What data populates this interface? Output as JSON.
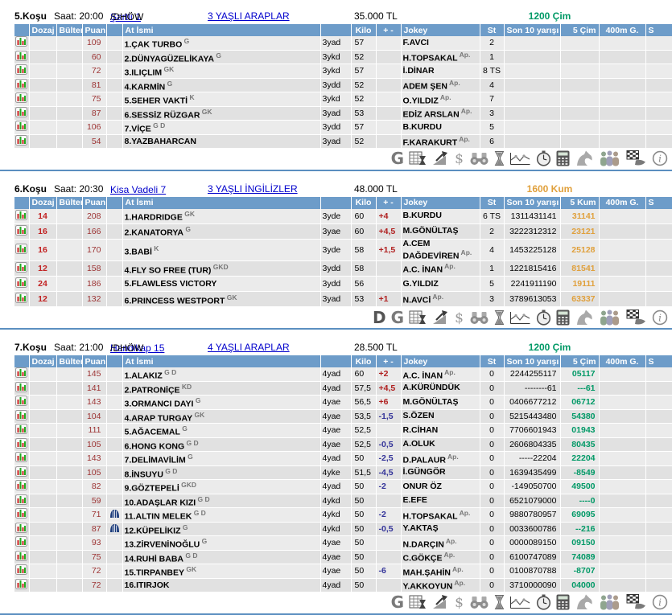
{
  "columns": {
    "dozaj": "Dozaj",
    "bulten": "Bülten",
    "puan": "Puan",
    "name": "At İsmi",
    "kilo": "Kilo",
    "diff": "+ -",
    "jokey": "Jokey",
    "st": "St",
    "son10": "Son 10 yarışı",
    "m400": "400m G.",
    "s_cut": "S"
  },
  "colors": {
    "header_bg": "#6d9cc9",
    "link": "#0000cc",
    "cim_green": "#009966",
    "kum_orange": "#e0a03c",
    "puan_red": "#9c3333",
    "dozaj_red": "#c22222",
    "plus_red": "#b02020",
    "minus_navy": "#333399",
    "divider_blue": "#5b8fc0"
  },
  "toolbar_icons": [
    "entries-table-icon",
    "performance-chart-icon",
    "dollar-icon",
    "binoculars-icon",
    "hourglass-icon",
    "form-graph-icon",
    "stopwatch-icon",
    "calculator-icon",
    "horse-icon",
    "crowd-icon",
    "finish-flag-icon",
    "info-icon"
  ],
  "races": [
    {
      "title": "5.Koşu",
      "time": "Saat: 20:00",
      "condition": "Şartlı 1",
      "condition_suffix": " /DHÖW",
      "category": "3 YAŞLI ARAPLAR",
      "prize": "35.000 TL",
      "distance": "1200 Çim",
      "surface": "cim",
      "surface_header": "5 Çim",
      "letters": [
        "G"
      ],
      "tall": false,
      "horses": [
        {
          "dozaj": "",
          "puan": "109",
          "blinkers": false,
          "name": "1.ÇAK TURBO",
          "sup": "G",
          "age": "3yad",
          "kilo": "57",
          "diff": "",
          "jokey": "F.AVCI",
          "ap": false,
          "st": "2",
          "son10": "",
          "last5": ""
        },
        {
          "dozaj": "",
          "puan": "60",
          "blinkers": false,
          "name": "2.DÜNYAGÜZELİKAYA",
          "sup": "G",
          "age": "3ykd",
          "kilo": "52",
          "diff": "",
          "jokey": "H.TOPSAKAL",
          "ap": true,
          "st": "1",
          "son10": "",
          "last5": ""
        },
        {
          "dozaj": "",
          "puan": "72",
          "blinkers": false,
          "name": "3.ILIÇLIM",
          "sup": "GK",
          "age": "3ykd",
          "kilo": "57",
          "diff": "",
          "jokey": "İ.DİNAR",
          "ap": false,
          "st": "8 TS",
          "son10": "",
          "last5": ""
        },
        {
          "dozaj": "",
          "puan": "81",
          "blinkers": false,
          "name": "4.KARMİN",
          "sup": "G",
          "age": "3ydd",
          "kilo": "52",
          "diff": "",
          "jokey": "ADEM ŞEN",
          "ap": true,
          "st": "4",
          "son10": "",
          "last5": ""
        },
        {
          "dozaj": "",
          "puan": "75",
          "blinkers": false,
          "name": "5.SEHER VAKTİ",
          "sup": "K",
          "age": "3ykd",
          "kilo": "52",
          "diff": "",
          "jokey": "O.YILDIZ",
          "ap": true,
          "st": "7",
          "son10": "",
          "last5": ""
        },
        {
          "dozaj": "",
          "puan": "87",
          "blinkers": false,
          "name": "6.SESSİZ RÜZGAR",
          "sup": "GK",
          "age": "3yad",
          "kilo": "53",
          "diff": "",
          "jokey": "EDİZ ARSLAN",
          "ap": true,
          "st": "3",
          "son10": "",
          "last5": ""
        },
        {
          "dozaj": "",
          "puan": "106",
          "blinkers": false,
          "name": "7.VİÇE",
          "sup": "G D",
          "age": "3ydd",
          "kilo": "57",
          "diff": "",
          "jokey": "B.KURDU",
          "ap": false,
          "st": "5",
          "son10": "",
          "last5": ""
        },
        {
          "dozaj": "",
          "puan": "54",
          "blinkers": false,
          "name": "8.YAZBAHARCAN",
          "sup": "",
          "age": "3yad",
          "kilo": "52",
          "diff": "",
          "jokey": "F.KARAKURT",
          "ap": true,
          "st": "6",
          "son10": "",
          "last5": ""
        }
      ]
    },
    {
      "title": "6.Koşu",
      "time": "Saat: 20:30",
      "condition": "Kisa Vadeli 7",
      "condition_suffix": "",
      "category": "3 YAŞLI İNGİLİZLER",
      "prize": "48.000 TL",
      "distance": "1600 Kum",
      "surface": "kum",
      "surface_header": "5 Kum",
      "letters": [
        "D",
        "G"
      ],
      "tall": true,
      "horses": [
        {
          "dozaj": "14",
          "puan": "208",
          "blinkers": false,
          "name": "1.HARDRIDGE",
          "sup": "GK",
          "age": "3yde",
          "kilo": "60",
          "diff": "+4",
          "jokey": "B.KURDU",
          "ap": false,
          "st": "6 TS",
          "son10": "1311431141",
          "last5": "31141"
        },
        {
          "dozaj": "16",
          "puan": "166",
          "blinkers": false,
          "name": "2.KANATORYA",
          "sup": "G",
          "age": "3yae",
          "kilo": "60",
          "diff": "+4,5",
          "jokey": "M.GÖNÜLTAŞ",
          "ap": false,
          "st": "2",
          "son10": "3222312312",
          "last5": "23121"
        },
        {
          "dozaj": "16",
          "puan": "170",
          "blinkers": false,
          "name": "3.BABİ",
          "sup": "K",
          "age": "3yde",
          "kilo": "58",
          "diff": "+1,5",
          "jokey": "A.CEM DAĞDEVİREN",
          "ap": true,
          "st": "4",
          "son10": "1453225128",
          "last5": "25128"
        },
        {
          "dozaj": "12",
          "puan": "158",
          "blinkers": false,
          "name": "4.FLY SO FREE (TUR)",
          "sup": "GKD",
          "age": "3ydd",
          "kilo": "58",
          "diff": "",
          "jokey": "A.C. İNAN",
          "ap": true,
          "st": "1",
          "son10": "1221815416",
          "last5": "81541"
        },
        {
          "dozaj": "24",
          "puan": "186",
          "blinkers": false,
          "name": "5.FLAWLESS VICTORY",
          "sup": "",
          "age": "3ydd",
          "kilo": "56",
          "diff": "",
          "jokey": "G.YILDIZ",
          "ap": false,
          "st": "5",
          "son10": "2241911190",
          "last5": "19111"
        },
        {
          "dozaj": "12",
          "puan": "132",
          "blinkers": false,
          "name": "6.PRINCESS WESTPORT",
          "sup": "GK",
          "age": "3yad",
          "kilo": "53",
          "diff": "+1",
          "jokey": "N.AVCİ",
          "ap": true,
          "st": "3",
          "son10": "3789613053",
          "last5": "63337"
        }
      ]
    },
    {
      "title": "7.Koşu",
      "time": "Saat: 21:00",
      "condition": "Handikap 15",
      "condition_suffix": " /DHÖW",
      "category": "4 YAŞLI ARAPLAR",
      "prize": "28.500 TL",
      "distance": "1200 Çim",
      "surface": "cim",
      "surface_header": "5 Çim",
      "letters": [
        "G"
      ],
      "tall": false,
      "horses": [
        {
          "dozaj": "",
          "puan": "145",
          "blinkers": false,
          "name": "1.ALAKIZ",
          "sup": "G D",
          "age": "4yad",
          "kilo": "60",
          "diff": "+2",
          "jokey": "A.C. İNAN",
          "ap": true,
          "st": "0",
          "son10": "2244255117",
          "last5": "05117"
        },
        {
          "dozaj": "",
          "puan": "141",
          "blinkers": false,
          "name": "2.PATRONİÇE",
          "sup": "KD",
          "age": "4yad",
          "kilo": "57,5",
          "diff": "+4,5",
          "jokey": "A.KÜRÜNDÜK",
          "ap": false,
          "st": "0",
          "son10": "--------61",
          "last5": "---61"
        },
        {
          "dozaj": "",
          "puan": "143",
          "blinkers": false,
          "name": "3.ORMANCI DAYI",
          "sup": "G",
          "age": "4yae",
          "kilo": "56,5",
          "diff": "+6",
          "jokey": "M.GÖNÜLTAŞ",
          "ap": false,
          "st": "0",
          "son10": "0406677212",
          "last5": "06712"
        },
        {
          "dozaj": "",
          "puan": "104",
          "blinkers": false,
          "name": "4.ARAP TURGAY",
          "sup": "GK",
          "age": "4yae",
          "kilo": "53,5",
          "diff": "-1,5",
          "jokey": "S.ÖZEN",
          "ap": false,
          "st": "0",
          "son10": "5215443480",
          "last5": "54380"
        },
        {
          "dozaj": "",
          "puan": "111",
          "blinkers": false,
          "name": "5.AĞACEMAL",
          "sup": "G",
          "age": "4yae",
          "kilo": "52,5",
          "diff": "",
          "jokey": "R.CİHAN",
          "ap": false,
          "st": "0",
          "son10": "7706601943",
          "last5": "01943"
        },
        {
          "dozaj": "",
          "puan": "105",
          "blinkers": false,
          "name": "6.HONG KONG",
          "sup": "G D",
          "age": "4yae",
          "kilo": "52,5",
          "diff": "-0,5",
          "jokey": "A.OLUK",
          "ap": false,
          "st": "0",
          "son10": "2606804335",
          "last5": "80435"
        },
        {
          "dozaj": "",
          "puan": "143",
          "blinkers": false,
          "name": "7.DELİMAVİLİM",
          "sup": "G",
          "age": "4yad",
          "kilo": "50",
          "diff": "-2,5",
          "jokey": "D.PALAUR",
          "ap": true,
          "st": "0",
          "son10": "-----22204",
          "last5": "22204"
        },
        {
          "dozaj": "",
          "puan": "105",
          "blinkers": false,
          "name": "8.İNSUYU",
          "sup": "G D",
          "age": "4yke",
          "kilo": "51,5",
          "diff": "-4,5",
          "jokey": "İ.GÜNGÖR",
          "ap": false,
          "st": "0",
          "son10": "1639435499",
          "last5": "-8549"
        },
        {
          "dozaj": "",
          "puan": "82",
          "blinkers": false,
          "name": "9.GÖZTEPELİ",
          "sup": "GKD",
          "age": "4yad",
          "kilo": "50",
          "diff": "-2",
          "jokey": "ONUR ÖZ",
          "ap": false,
          "st": "0",
          "son10": "-149050700",
          "last5": "49500"
        },
        {
          "dozaj": "",
          "puan": "59",
          "blinkers": false,
          "name": "10.ADAŞLAR KIZI",
          "sup": "G D",
          "age": "4ykd",
          "kilo": "50",
          "diff": "",
          "jokey": "E.EFE",
          "ap": false,
          "st": "0",
          "son10": "6521079000",
          "last5": "----0"
        },
        {
          "dozaj": "",
          "puan": "71",
          "blinkers": true,
          "name": "11.ALTIN MELEK",
          "sup": "G D",
          "age": "4ykd",
          "kilo": "50",
          "diff": "-2",
          "jokey": "H.TOPSAKAL",
          "ap": true,
          "st": "0",
          "son10": "9880780957",
          "last5": "69095"
        },
        {
          "dozaj": "",
          "puan": "87",
          "blinkers": true,
          "name": "12.KÜPELİKIZ",
          "sup": "G",
          "age": "4ykd",
          "kilo": "50",
          "diff": "-0,5",
          "jokey": "Y.AKTAŞ",
          "ap": false,
          "st": "0",
          "son10": "0033600786",
          "last5": "--216"
        },
        {
          "dozaj": "",
          "puan": "93",
          "blinkers": false,
          "name": "13.ZİRVENİNOĞLU",
          "sup": "G",
          "age": "4yae",
          "kilo": "50",
          "diff": "",
          "jokey": "N.DARÇIN",
          "ap": true,
          "st": "0",
          "son10": "0000089150",
          "last5": "09150"
        },
        {
          "dozaj": "",
          "puan": "75",
          "blinkers": false,
          "name": "14.RUHİ BABA",
          "sup": "G D",
          "age": "4yae",
          "kilo": "50",
          "diff": "",
          "jokey": "C.GÖKÇE",
          "ap": true,
          "st": "0",
          "son10": "6100747089",
          "last5": "74089"
        },
        {
          "dozaj": "",
          "puan": "72",
          "blinkers": false,
          "name": "15.TIRPANBEY",
          "sup": "GK",
          "age": "4yae",
          "kilo": "50",
          "diff": "-6",
          "jokey": "MAH.ŞAHİN",
          "ap": true,
          "st": "0",
          "son10": "0100870788",
          "last5": "-8707"
        },
        {
          "dozaj": "",
          "puan": "72",
          "blinkers": false,
          "name": "16.ITIRJOK",
          "sup": "",
          "age": "4yad",
          "kilo": "50",
          "diff": "",
          "jokey": "Y.AKKOYUN",
          "ap": true,
          "st": "0",
          "son10": "3710000090",
          "last5": "04000"
        }
      ]
    }
  ]
}
